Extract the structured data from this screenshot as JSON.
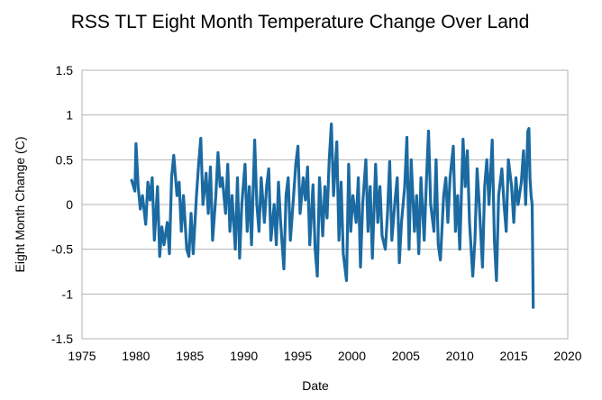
{
  "chart_data": {
    "type": "line",
    "title": "RSS TLT Eight Month Temperature Change Over Land",
    "xlabel": "Date",
    "ylabel": "Eight Month Change (C)",
    "xlim": [
      1975,
      2020
    ],
    "ylim": [
      -1.5,
      1.5
    ],
    "x_ticks": [
      1975,
      1980,
      1985,
      1990,
      1995,
      2000,
      2005,
      2010,
      2015,
      2020
    ],
    "y_ticks": [
      -1.5,
      -1,
      -0.5,
      0,
      0.5,
      1,
      1.5
    ],
    "x_tick_labels": [
      "1975",
      "1980",
      "1985",
      "1990",
      "1995",
      "2000",
      "2005",
      "2010",
      "2015",
      "2020"
    ],
    "y_tick_labels": [
      "-1.5",
      "-1",
      "-0.5",
      "0",
      "0.5",
      "1",
      "1.5"
    ],
    "grid": {
      "horizontal": true,
      "vertical": false
    },
    "legend": "none",
    "line_color": "#1b6aa1",
    "series": [
      {
        "x": [
          1979.6,
          1979.9,
          1980.0,
          1980.2,
          1980.4,
          1980.6,
          1980.9,
          1981.1,
          1981.3,
          1981.5,
          1981.7,
          1982.0,
          1982.2,
          1982.4,
          1982.6,
          1982.9,
          1983.1,
          1983.3,
          1983.5,
          1983.8,
          1984.0,
          1984.2,
          1984.4,
          1984.7,
          1984.9,
          1985.1,
          1985.3,
          1985.6,
          1985.8,
          1986.0,
          1986.2,
          1986.5,
          1986.7,
          1986.9,
          1987.1,
          1987.4,
          1987.6,
          1987.8,
          1988.0,
          1988.3,
          1988.5,
          1988.7,
          1988.9,
          1989.2,
          1989.4,
          1989.6,
          1989.8,
          1990.1,
          1990.3,
          1990.5,
          1990.7,
          1991.0,
          1991.2,
          1991.4,
          1991.6,
          1991.9,
          1992.1,
          1992.3,
          1992.5,
          1992.8,
          1993.0,
          1993.2,
          1993.4,
          1993.7,
          1993.9,
          1994.1,
          1994.3,
          1994.6,
          1994.8,
          1995.0,
          1995.2,
          1995.5,
          1995.7,
          1995.9,
          1996.1,
          1996.4,
          1996.6,
          1996.8,
          1997.0,
          1997.3,
          1997.5,
          1997.7,
          1997.9,
          1998.1,
          1998.3,
          1998.6,
          1998.8,
          1999.0,
          1999.2,
          1999.5,
          1999.7,
          1999.9,
          2000.1,
          2000.4,
          2000.6,
          2000.8,
          2001.0,
          2001.3,
          2001.5,
          2001.7,
          2001.9,
          2002.2,
          2002.4,
          2002.6,
          2002.8,
          2003.1,
          2003.3,
          2003.5,
          2003.7,
          2004.0,
          2004.2,
          2004.4,
          2004.6,
          2004.9,
          2005.1,
          2005.3,
          2005.5,
          2005.8,
          2006.0,
          2006.2,
          2006.4,
          2006.7,
          2006.9,
          2007.1,
          2007.3,
          2007.6,
          2007.8,
          2008.0,
          2008.2,
          2008.5,
          2008.7,
          2008.9,
          2009.1,
          2009.4,
          2009.6,
          2009.8,
          2010.0,
          2010.3,
          2010.5,
          2010.7,
          2010.9,
          2011.2,
          2011.4,
          2011.6,
          2011.8,
          2012.1,
          2012.3,
          2012.5,
          2012.7,
          2013.0,
          2013.2,
          2013.4,
          2013.6,
          2013.9,
          2014.1,
          2014.3,
          2014.5,
          2014.8,
          2015.0,
          2015.2,
          2015.4,
          2015.7,
          2015.9,
          2016.1,
          2016.3,
          2016.4,
          2016.5,
          2016.6,
          2016.7,
          2016.8
        ],
        "y": [
          0.27,
          0.15,
          0.68,
          0.2,
          -0.05,
          0.1,
          -0.22,
          0.25,
          0.05,
          0.3,
          -0.4,
          0.2,
          -0.58,
          -0.25,
          -0.45,
          -0.2,
          -0.55,
          0.3,
          0.55,
          0.1,
          0.25,
          -0.3,
          0.1,
          -0.5,
          -0.58,
          -0.1,
          -0.55,
          0.1,
          0.45,
          0.74,
          0.0,
          0.35,
          -0.1,
          0.42,
          -0.4,
          0.1,
          0.58,
          0.2,
          0.3,
          -0.1,
          0.45,
          -0.3,
          0.1,
          -0.5,
          0.3,
          -0.6,
          0.0,
          0.45,
          -0.3,
          0.2,
          -0.45,
          0.72,
          0.0,
          -0.3,
          0.3,
          -0.2,
          0.2,
          0.4,
          -0.4,
          0.0,
          -0.45,
          0.25,
          -0.2,
          -0.72,
          0.1,
          0.3,
          -0.4,
          0.1,
          0.45,
          0.65,
          -0.1,
          0.3,
          0.05,
          0.42,
          -0.45,
          0.22,
          -0.5,
          -0.8,
          0.3,
          -0.35,
          0.2,
          -0.15,
          0.5,
          0.9,
          0.1,
          0.7,
          -0.4,
          0.25,
          -0.55,
          -0.85,
          0.45,
          -0.3,
          0.1,
          -0.2,
          0.3,
          -0.7,
          0.0,
          0.5,
          -0.3,
          0.2,
          -0.6,
          0.45,
          -0.2,
          0.2,
          -0.35,
          -0.5,
          -0.1,
          0.48,
          -0.4,
          0.05,
          0.3,
          -0.65,
          -0.2,
          0.2,
          0.75,
          -0.5,
          0.5,
          -0.3,
          0.1,
          -0.55,
          0.3,
          -0.4,
          0.25,
          0.82,
          0.0,
          -0.3,
          0.5,
          -0.45,
          -0.62,
          0.1,
          0.3,
          -0.2,
          0.3,
          0.65,
          -0.3,
          0.1,
          -0.5,
          0.73,
          0.2,
          0.6,
          -0.2,
          -0.8,
          -0.4,
          0.4,
          0.0,
          -0.7,
          0.2,
          0.5,
          0.0,
          0.72,
          -0.4,
          -0.85,
          0.1,
          0.4,
          0.0,
          -0.3,
          0.5,
          0.2,
          -0.2,
          0.3,
          0.0,
          0.25,
          0.6,
          0.0,
          0.82,
          0.85,
          0.3,
          0.1,
          0.0,
          -1.15
        ]
      }
    ]
  }
}
